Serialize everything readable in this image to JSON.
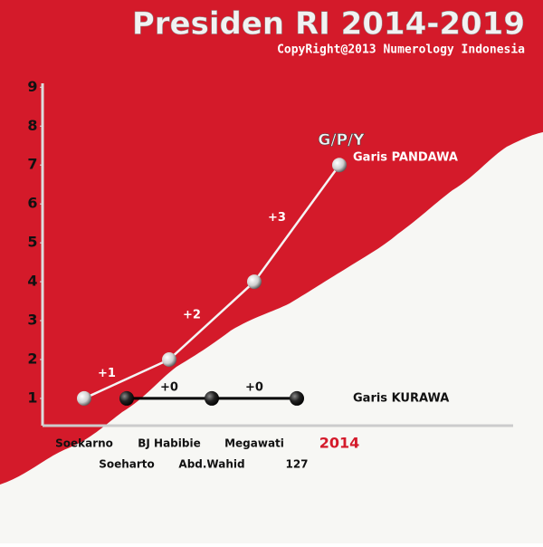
{
  "chart_data": {
    "type": "line",
    "title": "Presiden RI 2014-2019",
    "subtitle": "CopyRight@2013 Numerology Indonesia",
    "annotation": "G/P/Y",
    "ylim": [
      0.3,
      9.1
    ],
    "yticks": [
      1,
      2,
      3,
      4,
      5,
      6,
      7,
      8,
      9
    ],
    "series": [
      {
        "name": "Garis PANDAWA",
        "color": "#f4f4f4",
        "categories": [
          "Soekarno",
          "BJ Habibie",
          "Megawati",
          "2014"
        ],
        "values": [
          1,
          2,
          4,
          7
        ],
        "step_labels": [
          "+1",
          "+2",
          "+3"
        ]
      },
      {
        "name": "Garis KURAWA",
        "color": "#000000",
        "categories": [
          "Soeharto",
          "Abd.Wahid",
          "127"
        ],
        "values": [
          1,
          1,
          1
        ],
        "step_labels": [
          "+0",
          "+0"
        ]
      }
    ]
  }
}
